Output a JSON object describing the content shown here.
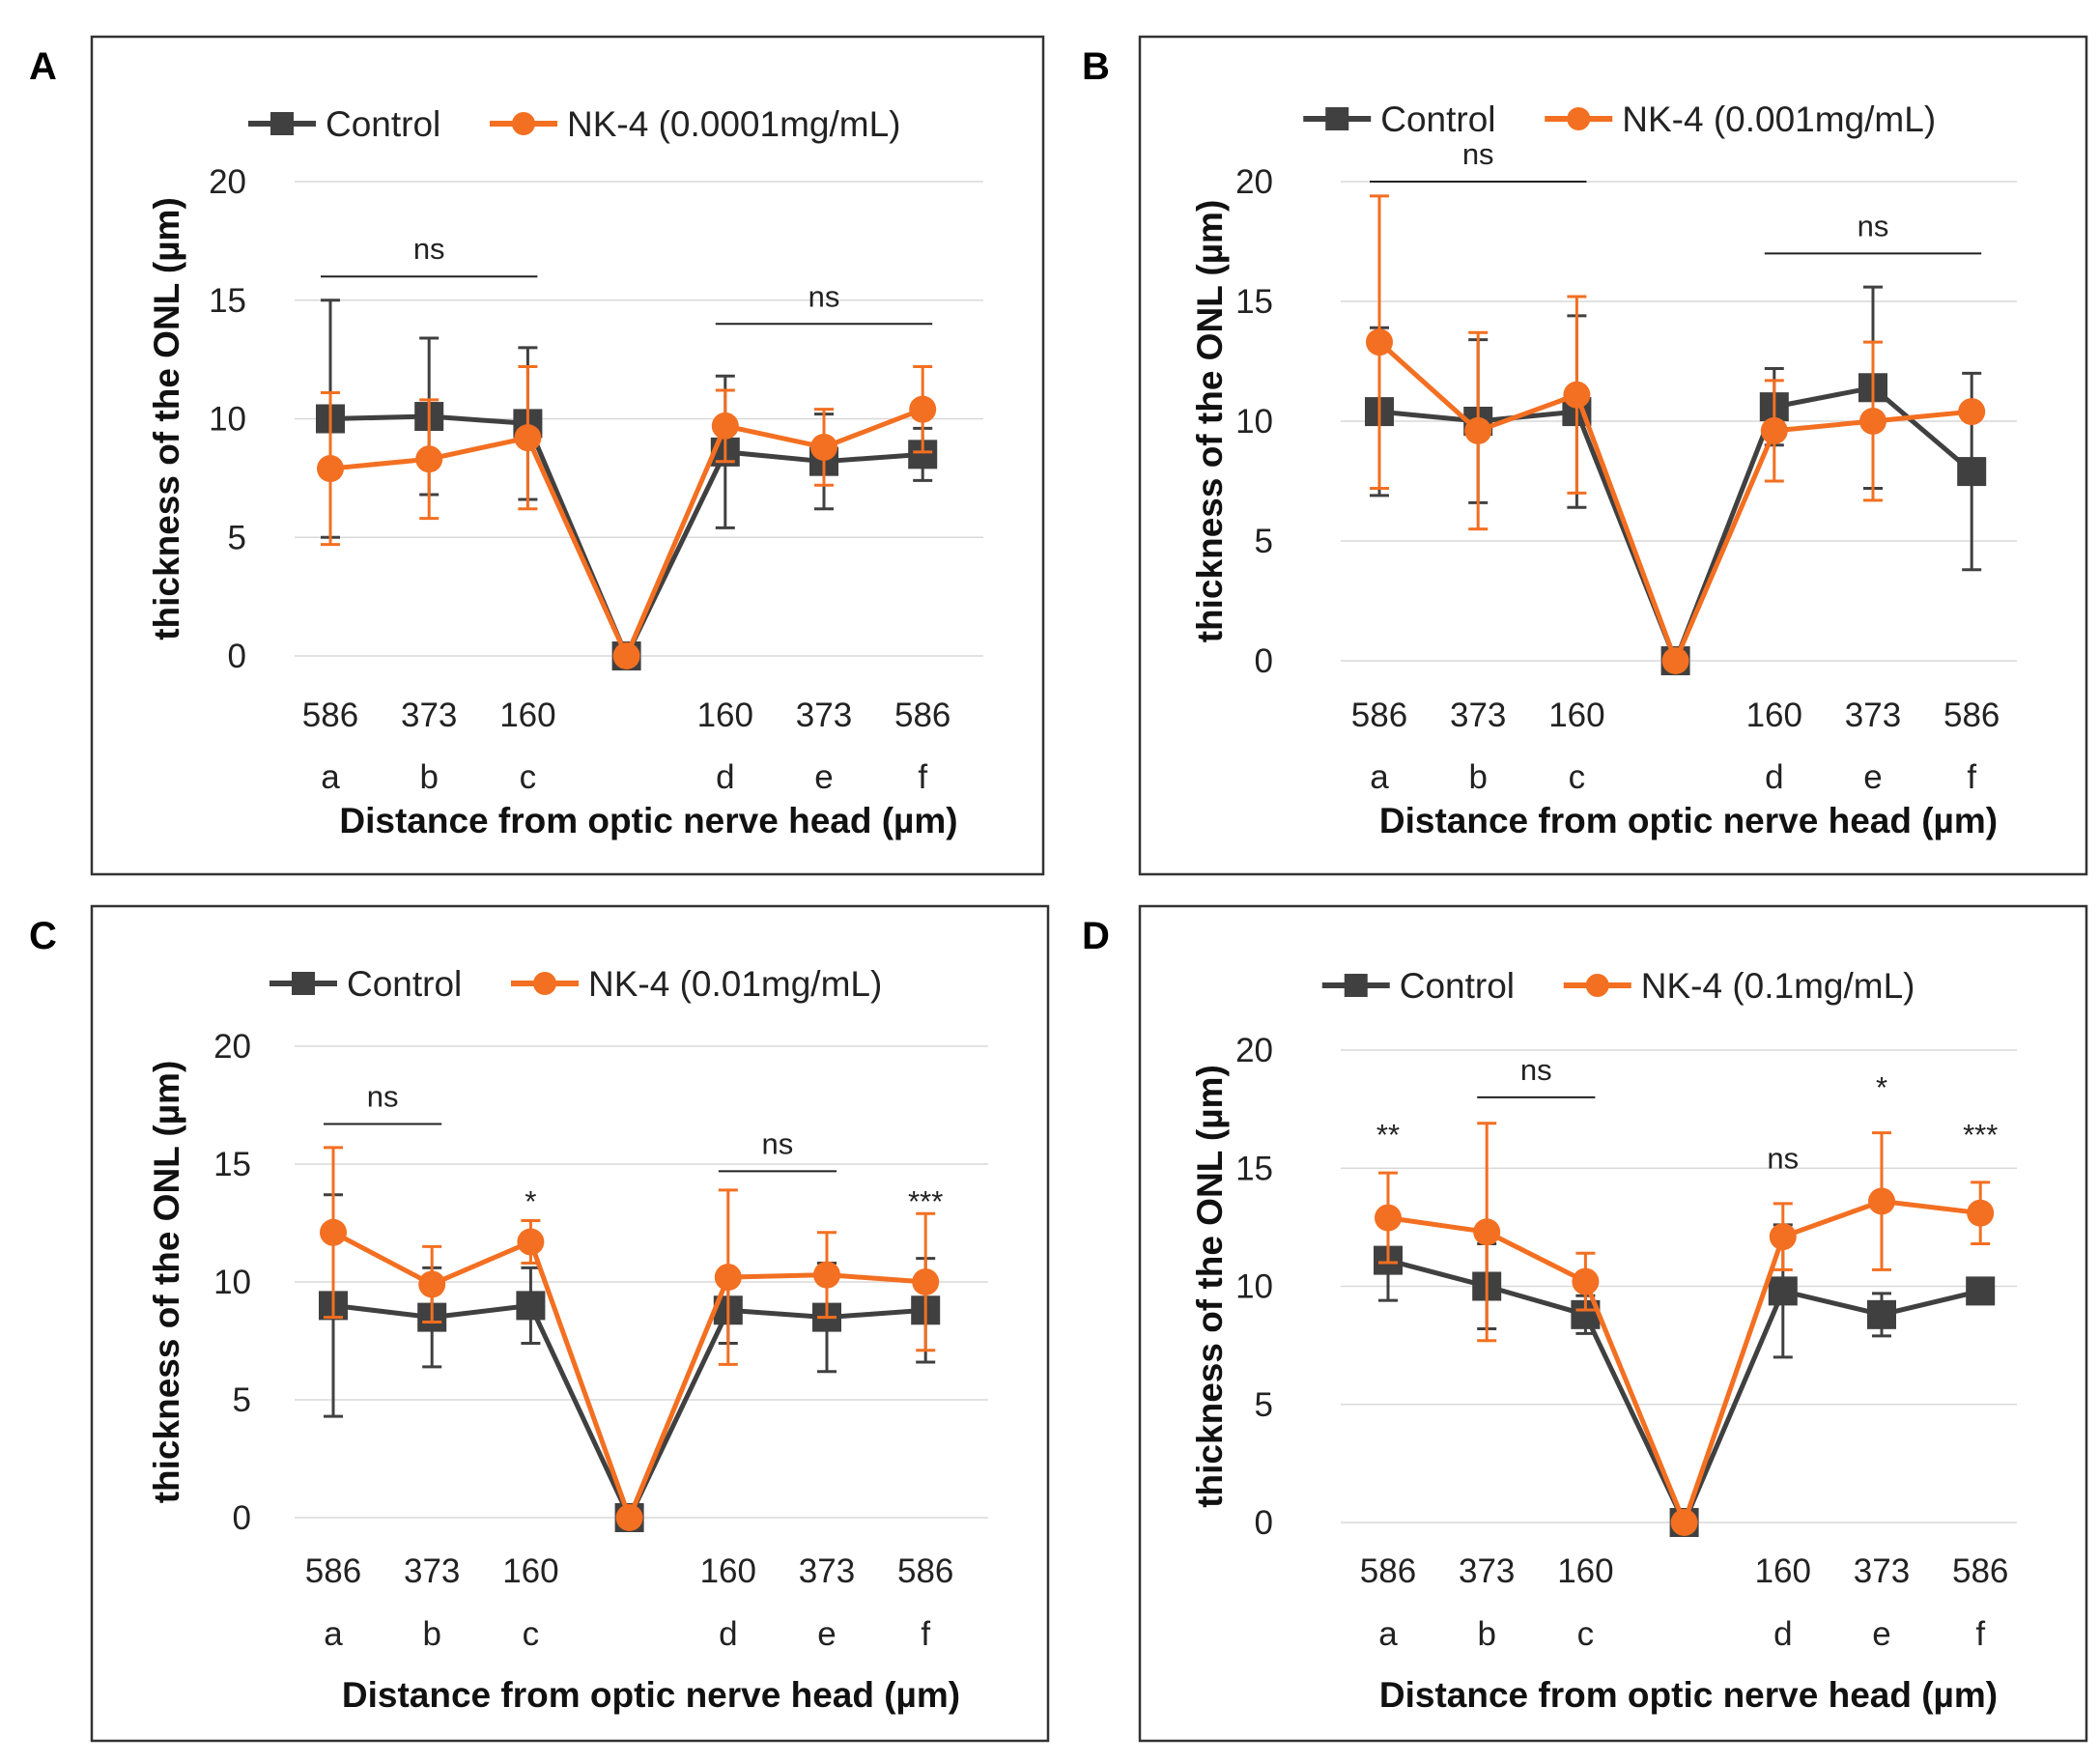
{
  "colors": {
    "control": "#404040",
    "nk4": "#f36f21"
  },
  "chart_data": [
    {
      "panel": "A",
      "type": "line",
      "categories": [
        "a",
        "b",
        "c",
        "",
        "d",
        "e",
        "f"
      ],
      "distance_labels": [
        "586",
        "373",
        "160",
        "",
        "160",
        "373",
        "586"
      ],
      "xlabel": "Distance from optic nerve head (µm)",
      "ylabel": "thickness of the ONL (µm)",
      "ylim": [
        0,
        20
      ],
      "yticks": [
        "0",
        "5",
        "10",
        "15",
        "20"
      ],
      "series": [
        {
          "name": "Control",
          "values": [
            10.0,
            10.1,
            9.8,
            0,
            8.6,
            8.2,
            8.5
          ],
          "errors": [
            5.0,
            3.3,
            3.2,
            0,
            3.2,
            2.0,
            1.1
          ]
        },
        {
          "name": "NK-4 (0.0001mg/mL)",
          "values": [
            7.9,
            8.3,
            9.2,
            0,
            9.7,
            8.8,
            10.4
          ],
          "errors": [
            3.2,
            2.5,
            3.0,
            0,
            1.5,
            1.6,
            1.8
          ]
        }
      ],
      "annotations": [
        {
          "text": "ns",
          "from": 0,
          "to": 2,
          "y": 16.0
        },
        {
          "text": "ns",
          "from": 4,
          "to": 6,
          "y": 14.0
        }
      ]
    },
    {
      "panel": "B",
      "type": "line",
      "categories": [
        "a",
        "b",
        "c",
        "",
        "d",
        "e",
        "f"
      ],
      "distance_labels": [
        "586",
        "373",
        "160",
        "",
        "160",
        "373",
        "586"
      ],
      "xlabel": "Distance from optic nerve head (µm)",
      "ylabel": "thickness of the ONL (µm)",
      "ylim": [
        0,
        20
      ],
      "yticks": [
        "0",
        "5",
        "10",
        "15",
        "20"
      ],
      "series": [
        {
          "name": "Control",
          "values": [
            10.4,
            10.0,
            10.4,
            0,
            10.6,
            11.4,
            7.9
          ],
          "errors": [
            3.5,
            3.4,
            4.0,
            0,
            1.6,
            4.2,
            4.1
          ]
        },
        {
          "name": "NK-4 (0.001mg/mL)",
          "values": [
            13.3,
            9.6,
            11.1,
            0,
            9.6,
            10.0,
            10.4
          ],
          "errors": [
            6.1,
            4.1,
            4.1,
            0,
            2.1,
            3.3,
            0
          ]
        }
      ],
      "annotations": [
        {
          "text": "ns",
          "from": 0,
          "to": 2,
          "y": 20.0
        },
        {
          "text": "ns",
          "from": 4,
          "to": 6,
          "y": 17.0
        }
      ]
    },
    {
      "panel": "C",
      "type": "line",
      "categories": [
        "a",
        "b",
        "c",
        "",
        "d",
        "e",
        "f"
      ],
      "distance_labels": [
        "586",
        "373",
        "160",
        "",
        "160",
        "373",
        "586"
      ],
      "xlabel": "Distance from optic nerve head (µm)",
      "ylabel": "thickness of the ONL (µm)",
      "ylim": [
        0,
        20
      ],
      "yticks": [
        "0",
        "5",
        "10",
        "15",
        "20"
      ],
      "series": [
        {
          "name": "Control",
          "values": [
            9.0,
            8.5,
            9.0,
            0,
            8.8,
            8.5,
            8.8
          ],
          "errors": [
            4.7,
            2.1,
            1.6,
            0,
            1.4,
            2.3,
            2.2
          ]
        },
        {
          "name": "NK-4 (0.01mg/mL)",
          "values": [
            12.1,
            9.9,
            11.7,
            0,
            10.2,
            10.3,
            10.0
          ],
          "errors": [
            3.6,
            1.6,
            0.9,
            0,
            3.7,
            1.8,
            2.9
          ]
        }
      ],
      "annotations": [
        {
          "text": "ns",
          "from": 0,
          "to": 1,
          "y": 16.7
        },
        {
          "text": "ns",
          "from": 4,
          "to": 5,
          "y": 14.7
        },
        {
          "text": "*",
          "at": 2,
          "y": 13.0
        },
        {
          "text": "***",
          "at": 6,
          "y": 13.0
        }
      ]
    },
    {
      "panel": "D",
      "type": "line",
      "categories": [
        "a",
        "b",
        "c",
        "",
        "d",
        "e",
        "f"
      ],
      "distance_labels": [
        "586",
        "373",
        "160",
        "",
        "160",
        "373",
        "586"
      ],
      "xlabel": "Distance from optic nerve head (µm)",
      "ylabel": "thickness of the ONL (µm)",
      "ylim": [
        0,
        20
      ],
      "yticks": [
        "0",
        "5",
        "10",
        "15",
        "20"
      ],
      "series": [
        {
          "name": "Control",
          "values": [
            11.1,
            10.0,
            8.8,
            0,
            9.8,
            8.8,
            9.8
          ],
          "errors": [
            1.7,
            1.8,
            0.8,
            0,
            2.8,
            0.9,
            0.3
          ]
        },
        {
          "name": "NK-4 (0.1mg/mL)",
          "values": [
            12.9,
            12.3,
            10.2,
            0,
            12.1,
            13.6,
            13.1
          ],
          "errors": [
            1.9,
            4.6,
            1.2,
            0,
            1.4,
            2.9,
            1.3
          ]
        }
      ],
      "annotations": [
        {
          "text": "ns",
          "from": 1,
          "to": 2,
          "y": 18.0
        },
        {
          "text": "**",
          "at": 0,
          "y": 16.0
        },
        {
          "text": "ns",
          "at": 4,
          "y": 15.0
        },
        {
          "text": "*",
          "at": 5,
          "y": 18.0
        },
        {
          "text": "***",
          "at": 6,
          "y": 16.0
        }
      ]
    }
  ]
}
